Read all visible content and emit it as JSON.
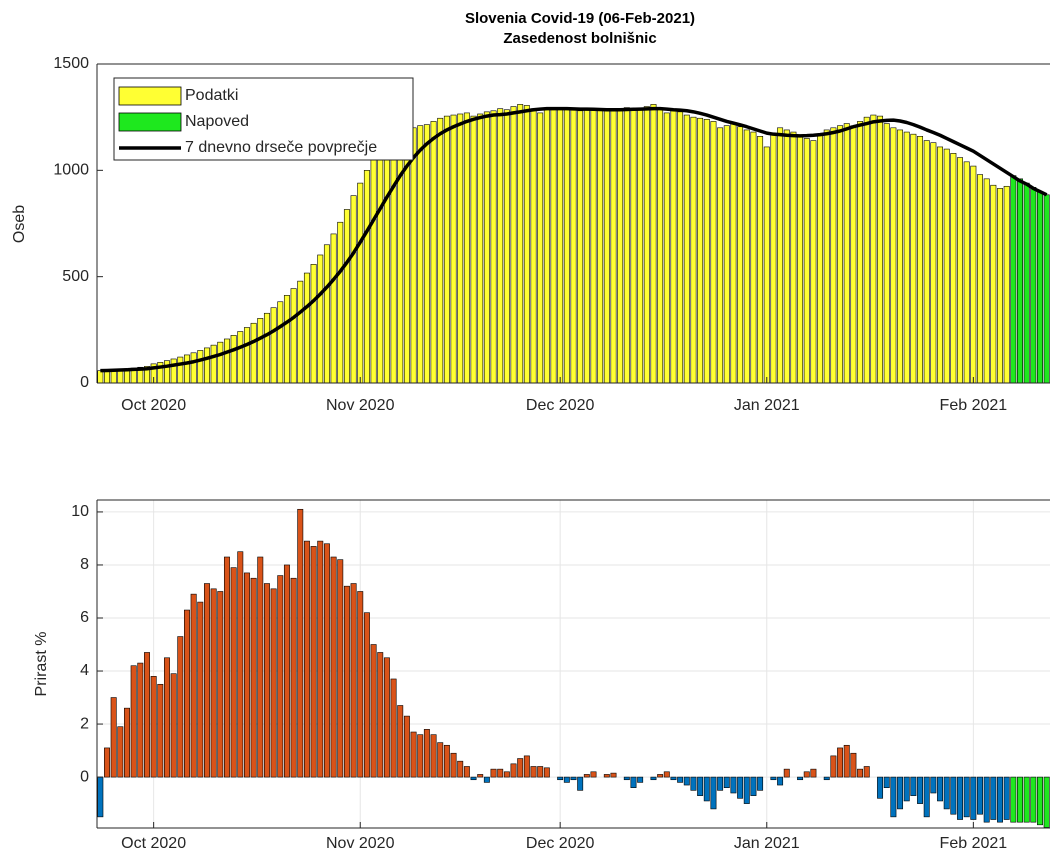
{
  "chart_data": [
    {
      "type": "bar",
      "title": "Slovenia Covid-19 (06-Feb-2021)",
      "subtitle": "Zasedenost bolnišnic",
      "ylabel": "Oseb",
      "categories": [
        null,
        null,
        null,
        null,
        null,
        null,
        null,
        null,
        "Oct 2020",
        null,
        null,
        null,
        null,
        null,
        null,
        null,
        null,
        null,
        null,
        null,
        null,
        null,
        null,
        null,
        null,
        null,
        null,
        null,
        null,
        null,
        null,
        null,
        null,
        null,
        null,
        null,
        null,
        null,
        null,
        "Nov 2020",
        null,
        null,
        null,
        null,
        null,
        null,
        null,
        null,
        null,
        null,
        null,
        null,
        null,
        null,
        null,
        null,
        null,
        null,
        null,
        null,
        null,
        null,
        null,
        null,
        null,
        null,
        null,
        null,
        null,
        "Dec 2020",
        null,
        null,
        null,
        null,
        null,
        null,
        null,
        null,
        null,
        null,
        null,
        null,
        null,
        null,
        null,
        null,
        null,
        null,
        null,
        null,
        null,
        null,
        null,
        null,
        null,
        null,
        null,
        null,
        null,
        null,
        "Jan 2021",
        null,
        null,
        null,
        null,
        null,
        null,
        null,
        null,
        null,
        null,
        null,
        null,
        null,
        null,
        null,
        null,
        null,
        null,
        null,
        null,
        null,
        null,
        null,
        null,
        null,
        null,
        null,
        null,
        null,
        null,
        "Feb 2021",
        null,
        null,
        null,
        null,
        null,
        null,
        null,
        null,
        null,
        null,
        null
      ],
      "series": [
        {
          "name": "Podatki",
          "color": "#ffff33",
          "values": [
            58,
            60,
            62,
            64,
            67,
            70,
            74,
            78,
            90,
            97,
            105,
            113,
            122,
            132,
            142,
            153,
            165,
            178,
            192,
            207,
            224,
            242,
            261,
            281,
            304,
            328,
            354,
            382,
            412,
            444,
            479,
            517,
            558,
            602,
            650,
            701,
            756,
            816,
            881,
            940,
            1000,
            1050,
            1090,
            1120,
            1150,
            1170,
            1190,
            1200,
            1210,
            1215,
            1230,
            1245,
            1255,
            1260,
            1265,
            1270,
            1255,
            1265,
            1275,
            1280,
            1290,
            1285,
            1300,
            1310,
            1305,
            1290,
            1270,
            1285,
            1290,
            1295,
            1290,
            1285,
            1280,
            1285,
            1290,
            1288,
            1285,
            1280,
            1290,
            1295,
            1285,
            1290,
            1300,
            1310,
            1290,
            1270,
            1280,
            1275,
            1260,
            1250,
            1245,
            1240,
            1230,
            1200,
            1210,
            1220,
            1205,
            1190,
            1180,
            1160,
            1110,
            1170,
            1200,
            1190,
            1180,
            1160,
            1150,
            1140,
            1170,
            1190,
            1200,
            1210,
            1220,
            1210,
            1230,
            1250,
            1260,
            1255,
            1220,
            1200,
            1190,
            1180,
            1170,
            1160,
            1140,
            1130,
            1110,
            1100,
            1080,
            1060,
            1040,
            1020,
            980,
            960,
            930,
            915,
            925,
            null,
            null,
            null,
            null,
            null,
            null
          ]
        },
        {
          "name": "Napoved",
          "color": "#1ee81e",
          "values": [
            null,
            null,
            null,
            null,
            null,
            null,
            null,
            null,
            null,
            null,
            null,
            null,
            null,
            null,
            null,
            null,
            null,
            null,
            null,
            null,
            null,
            null,
            null,
            null,
            null,
            null,
            null,
            null,
            null,
            null,
            null,
            null,
            null,
            null,
            null,
            null,
            null,
            null,
            null,
            null,
            null,
            null,
            null,
            null,
            null,
            null,
            null,
            null,
            null,
            null,
            null,
            null,
            null,
            null,
            null,
            null,
            null,
            null,
            null,
            null,
            null,
            null,
            null,
            null,
            null,
            null,
            null,
            null,
            null,
            null,
            null,
            null,
            null,
            null,
            null,
            null,
            null,
            null,
            null,
            null,
            null,
            null,
            null,
            null,
            null,
            null,
            null,
            null,
            null,
            null,
            null,
            null,
            null,
            null,
            null,
            null,
            null,
            null,
            null,
            null,
            null,
            null,
            null,
            null,
            null,
            null,
            null,
            null,
            null,
            null,
            null,
            null,
            null,
            null,
            null,
            null,
            null,
            null,
            null,
            null,
            null,
            null,
            null,
            null,
            null,
            null,
            null,
            null,
            null,
            null,
            null,
            null,
            null,
            null,
            null,
            null,
            null,
            975,
            960,
            940,
            920,
            900,
            885
          ]
        },
        {
          "name": "7 dnevno drseče povprečje",
          "color": "#000000",
          "type": "line",
          "values": [
            58,
            59,
            60,
            61,
            62,
            64,
            65,
            67,
            71,
            75,
            79,
            84,
            89,
            94,
            100,
            108,
            116,
            125,
            134,
            145,
            156,
            168,
            181,
            195,
            211,
            227,
            245,
            265,
            286,
            308,
            333,
            359,
            387,
            418,
            451,
            487,
            525,
            567,
            612,
            662,
            714,
            767,
            820,
            874,
            925,
            975,
            1020,
            1060,
            1095,
            1125,
            1150,
            1172,
            1190,
            1205,
            1218,
            1230,
            1240,
            1248,
            1255,
            1260,
            1262,
            1265,
            1270,
            1275,
            1280,
            1285,
            1288,
            1290,
            1290,
            1290,
            1290,
            1289,
            1288,
            1288,
            1287,
            1286,
            1285,
            1285,
            1285,
            1286,
            1287,
            1288,
            1289,
            1290,
            1290,
            1288,
            1285,
            1283,
            1280,
            1275,
            1268,
            1260,
            1250,
            1240,
            1230,
            1222,
            1214,
            1205,
            1195,
            1185,
            1175,
            1170,
            1168,
            1165,
            1163,
            1162,
            1163,
            1165,
            1168,
            1172,
            1178,
            1185,
            1195,
            1205,
            1213,
            1220,
            1228,
            1232,
            1235,
            1236,
            1232,
            1225,
            1215,
            1203,
            1190,
            1178,
            1165,
            1150,
            1135,
            1120,
            1105,
            1090,
            1070,
            1050,
            1030,
            1010,
            990,
            970,
            950,
            935,
            915,
            900,
            885
          ]
        }
      ],
      "ylim": [
        0,
        1500
      ],
      "yticks": [
        0,
        500,
        1000,
        1500
      ],
      "grid": false,
      "legend": "upper-left"
    },
    {
      "type": "bar",
      "ylabel": "Prirast %",
      "categories": [
        null,
        null,
        null,
        null,
        null,
        null,
        null,
        null,
        "Oct 2020",
        null,
        null,
        null,
        null,
        null,
        null,
        null,
        null,
        null,
        null,
        null,
        null,
        null,
        null,
        null,
        null,
        null,
        null,
        null,
        null,
        null,
        null,
        null,
        null,
        null,
        null,
        null,
        null,
        null,
        null,
        "Nov 2020",
        null,
        null,
        null,
        null,
        null,
        null,
        null,
        null,
        null,
        null,
        null,
        null,
        null,
        null,
        null,
        null,
        null,
        null,
        null,
        null,
        null,
        null,
        null,
        null,
        null,
        null,
        null,
        null,
        null,
        "Dec 2020",
        null,
        null,
        null,
        null,
        null,
        null,
        null,
        null,
        null,
        null,
        null,
        null,
        null,
        null,
        null,
        null,
        null,
        null,
        null,
        null,
        null,
        null,
        null,
        null,
        null,
        null,
        null,
        null,
        null,
        null,
        "Jan 2021",
        null,
        null,
        null,
        null,
        null,
        null,
        null,
        null,
        null,
        null,
        null,
        null,
        null,
        null,
        null,
        null,
        null,
        null,
        null,
        null,
        null,
        null,
        null,
        null,
        null,
        null,
        null,
        null,
        null,
        null,
        "Feb 2021",
        null,
        null,
        null,
        null,
        null,
        null,
        null,
        null,
        null,
        null,
        null
      ],
      "values": [
        -1.5,
        1.1,
        3.0,
        1.9,
        2.6,
        4.2,
        4.3,
        4.7,
        3.8,
        3.5,
        4.5,
        3.9,
        5.3,
        6.3,
        6.9,
        6.6,
        7.3,
        7.1,
        7.0,
        8.3,
        7.9,
        8.5,
        7.7,
        7.5,
        8.3,
        7.3,
        7.1,
        7.6,
        8.0,
        7.5,
        10.1,
        8.9,
        8.7,
        8.9,
        8.8,
        8.3,
        8.2,
        7.2,
        7.3,
        7.0,
        6.2,
        5.0,
        4.7,
        4.5,
        3.7,
        2.7,
        2.3,
        1.7,
        1.6,
        1.8,
        1.6,
        1.3,
        1.2,
        0.9,
        0.6,
        0.4,
        -0.1,
        0.1,
        -0.2,
        0.3,
        0.3,
        0.2,
        0.5,
        0.7,
        0.8,
        0.4,
        0.4,
        0.35,
        0.0,
        -0.1,
        -0.2,
        -0.1,
        -0.5,
        0.1,
        0.2,
        0.0,
        0.1,
        0.15,
        0.0,
        -0.1,
        -0.4,
        -0.2,
        0.0,
        -0.1,
        0.1,
        0.2,
        -0.1,
        -0.2,
        -0.3,
        -0.5,
        -0.7,
        -0.9,
        -1.2,
        -0.5,
        -0.4,
        -0.6,
        -0.8,
        -1.0,
        -0.7,
        -0.5,
        0.0,
        -0.1,
        -0.3,
        0.3,
        0.0,
        -0.1,
        0.2,
        0.3,
        0.0,
        -0.1,
        0.8,
        1.1,
        1.2,
        0.9,
        0.3,
        0.4,
        0.0,
        -0.8,
        -0.4,
        -1.5,
        -1.2,
        -0.9,
        -0.7,
        -1.0,
        -1.5,
        -0.6,
        -0.9,
        -1.2,
        -1.4,
        -1.6,
        -1.5,
        -1.6,
        -1.4,
        -1.7,
        -1.6,
        -1.7,
        -1.6,
        null,
        null,
        null,
        null,
        null,
        null
      ],
      "forecast_values": [
        null,
        null,
        null,
        null,
        null,
        null,
        null,
        null,
        null,
        null,
        null,
        null,
        null,
        null,
        null,
        null,
        null,
        null,
        null,
        null,
        null,
        null,
        null,
        null,
        null,
        null,
        null,
        null,
        null,
        null,
        null,
        null,
        null,
        null,
        null,
        null,
        null,
        null,
        null,
        null,
        null,
        null,
        null,
        null,
        null,
        null,
        null,
        null,
        null,
        null,
        null,
        null,
        null,
        null,
        null,
        null,
        null,
        null,
        null,
        null,
        null,
        null,
        null,
        null,
        null,
        null,
        null,
        null,
        null,
        null,
        null,
        null,
        null,
        null,
        null,
        null,
        null,
        null,
        null,
        null,
        null,
        null,
        null,
        null,
        null,
        null,
        null,
        null,
        null,
        null,
        null,
        null,
        null,
        null,
        null,
        null,
        null,
        null,
        null,
        null,
        null,
        null,
        null,
        null,
        null,
        null,
        null,
        null,
        null,
        null,
        null,
        null,
        null,
        null,
        null,
        null,
        null,
        null,
        null,
        null,
        null,
        null,
        null,
        null,
        null,
        null,
        null,
        null,
        null,
        null,
        null,
        null,
        null,
        null,
        null,
        null,
        null,
        -1.7,
        -1.7,
        -1.7,
        -1.7,
        -1.8,
        -1.9
      ],
      "positive_color": "#d95319",
      "negative_color": "#0072bd",
      "forecast_color": "#1ee81e",
      "ylim": [
        -1.92,
        10.45
      ],
      "yticks": [
        0,
        2,
        4,
        6,
        8,
        10
      ],
      "grid": true
    }
  ]
}
